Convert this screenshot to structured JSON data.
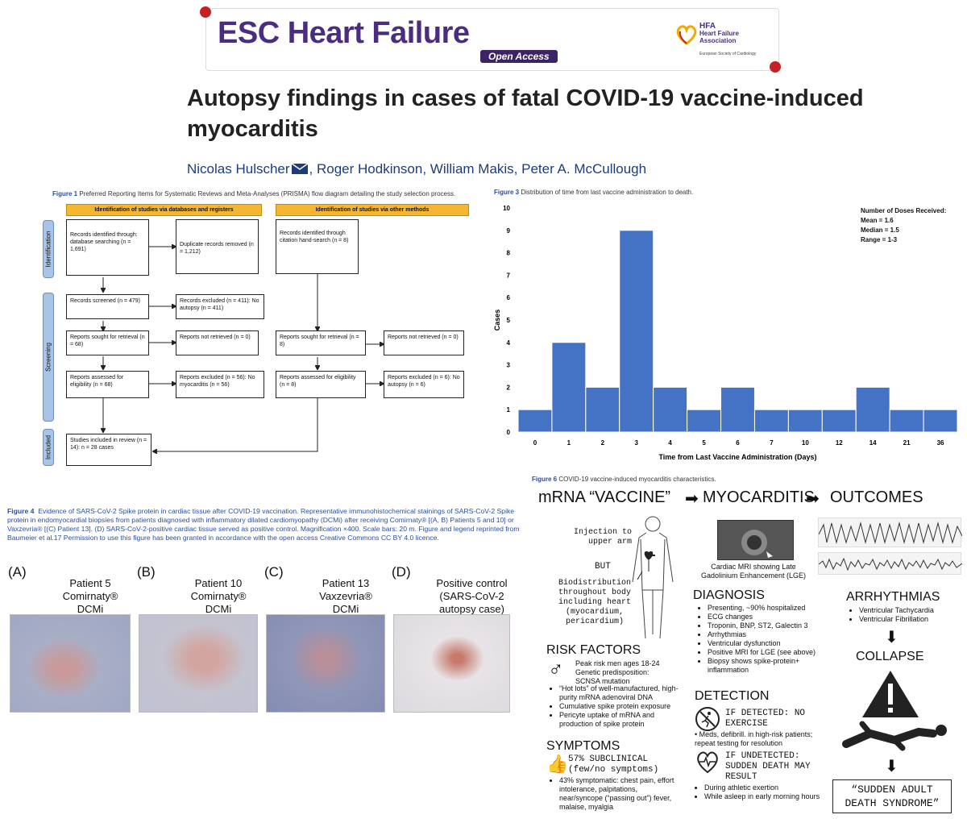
{
  "journal": {
    "name": "ESC Heart Failure",
    "badge": "Open Access",
    "assoc_abbr": "HFA",
    "assoc_line1": "Heart Failure",
    "assoc_line2": "Association",
    "society": "European Society of Cardiology"
  },
  "paper": {
    "title": "Autopsy findings in cases of fatal COVID-19 vaccine-induced myocarditis",
    "author1": "Nicolas Hulscher",
    "other_authors": ", Roger Hodkinson, William Makis, Peter A. McCullough"
  },
  "fig1": {
    "label": "Figure 1",
    "caption": "Preferred Reporting Items for Systematic Reviews and Meta-Analyses (PRISMA) flow diagram detailing the study selection process.",
    "head_left": "Identification of studies via databases and registers",
    "head_right": "Identification of studies via other methods",
    "stage_identification": "Identification",
    "stage_screening": "Screening",
    "stage_included": "Included",
    "b_identified_db": "Records identified through: database searching (n = 1,691)",
    "b_duplicates": "Duplicate records removed (n = 1,212)",
    "b_identified_other": "Records identified through citation hand-search (n = 8)",
    "b_screened": "Records screened (n = 479)",
    "b_excluded": "Records excluded (n = 411): No autopsy (n = 411)",
    "b_sought": "Reports sought for retrieval (n = 68)",
    "b_not_retrieved": "Reports not retrieved (n = 0)",
    "b_sought_other": "Reports sought for retrieval (n = 8)",
    "b_not_retrieved_other": "Reports not retrieved (n = 0)",
    "b_assessed": "Reports assessed for eligibility (n = 68)",
    "b_rep_excluded": "Reports excluded (n = 56): No myocarditis (n = 56)",
    "b_assessed_other": "Reports assessed for eligibility (n = 8)",
    "b_rep_excluded_other": "Reports excluded (n = 6): No autopsy (n = 6)",
    "b_included": "Studies included in review (n = 14): n = 28 cases"
  },
  "fig3": {
    "label": "Figure 3",
    "caption": "Distribution of time from last vaccine administration to death.",
    "stats_title": "Number of Doses Received:",
    "stats_mean": "Mean = 1.6",
    "stats_median": "Median = 1.5",
    "stats_range": "Range = 1-3"
  },
  "chart_data": {
    "type": "bar",
    "categories": [
      "0",
      "1",
      "2",
      "3",
      "4",
      "5",
      "6",
      "7",
      "10",
      "12",
      "14",
      "21",
      "36"
    ],
    "values": [
      1,
      4,
      2,
      9,
      2,
      1,
      2,
      1,
      1,
      1,
      2,
      1,
      1
    ],
    "xlabel": "Time from Last Vaccine Administration (Days)",
    "ylabel": "Cases",
    "ylim": [
      0,
      10
    ],
    "yticks": [
      "0",
      "1",
      "2",
      "3",
      "4",
      "5",
      "6",
      "7",
      "8",
      "9",
      "10"
    ],
    "bar_color": "#4472c4",
    "grid": false
  },
  "fig4": {
    "label": "Figure 4",
    "caption": "Evidence of SARS-CoV-2 Spike protein in cardiac tissue after COVID-19 vaccination. Representative immunohistochemical stainings of SARS-CoV-2 Spike protein in endomyocardial biopsies from patients diagnosed with inflammatory dilated cardiomyopathy (DCMi) after receiving Comirnaty® [(A, B) Patients 5 and 10] or Vaxzevria® [(C) Patient 13]. (D) SARS-CoV-2-positive cardiac tissue served as positive control. Magnification ×400. Scale bars: 20 m. Figure and legend reprinted from Baumeier et al.17 Permission to use this figure has been granted in accordance with the open access Creative Commons CC BY 4.0 licence.",
    "panels": [
      {
        "letter": "(A)",
        "l1": "Patient 5",
        "l2": "Comirnaty®",
        "l3": "DCMi"
      },
      {
        "letter": "(B)",
        "l1": "Patient 10",
        "l2": "Comirnaty®",
        "l3": "DCMi"
      },
      {
        "letter": "(C)",
        "l1": "Patient 13",
        "l2": "Vaxzevria®",
        "l3": "DCMi"
      },
      {
        "letter": "(D)",
        "l1": "Positive control",
        "l2": "(SARS-CoV-2",
        "l3": "autopsy case)"
      }
    ]
  },
  "fig6": {
    "label": "Figure 6",
    "caption": "COVID-19 vaccine-induced myocarditis characteristics.",
    "h_vaccine": "mRNA “VACCINE”",
    "h_myocarditis": "MYOCARDITIS",
    "h_outcomes": "OUTCOMES",
    "injection": "Injection to upper arm",
    "but": "BUT",
    "biodistribution": "Biodistribution throughout body including heart (myocardium, pericardium)",
    "mri_caption": "Cardiac MRI showing Late Gadolinium Enhancement (LGE)",
    "risk_title": "RISK FACTORS",
    "risk_male": "Peak risk men ages 18-24 Genetic predisposition: SCNSA mutation",
    "risk_items": [
      "“Hot lots” of well-manufactured, high-purity mRNA adenoviral DNA",
      "Cumulative spike protein exposure",
      "Pericyte uptake of mRNA and production of spike protein"
    ],
    "symptoms_title": "SYMPTOMS",
    "symptoms_main": "57% SUBCLINICAL (few/no symptoms)",
    "symptoms_item": "43% symptomatic: chest pain, effort intolerance, palpitations, near/syncope (“passing out”) fever, malaise, myalgia",
    "diagnosis_title": "DIAGNOSIS",
    "diagnosis_items": [
      "Presenting, ~90% hospitalized",
      "ECG changes",
      "Troponin, BNP, ST2, Galectin 3",
      "Arrhythmias",
      "Ventricular dysfunction",
      "Positive MRI for LGE (see above)",
      "Biopsy shows spike-protein+ inflammation"
    ],
    "detection_title": "DETECTION",
    "detected": "IF DETECTED: NO EXERCISE",
    "detected_item": "Meds, defibrill. in high-risk patients; repeat testing for resolution",
    "undetected": "IF UNDETECTED: SUDDEN DEATH MAY RESULT",
    "undetected_items": [
      "During athletic exertion",
      "While asleep in early morning hours"
    ],
    "arrhythmias_title": "ARRHYTHMIAS",
    "arrhythmias_items": [
      "Ventricular Tachycardia",
      "Ventricular Fibrillation"
    ],
    "collapse": "COLLAPSE",
    "sads": "“SUDDEN ADULT DEATH SYNDROME”"
  }
}
